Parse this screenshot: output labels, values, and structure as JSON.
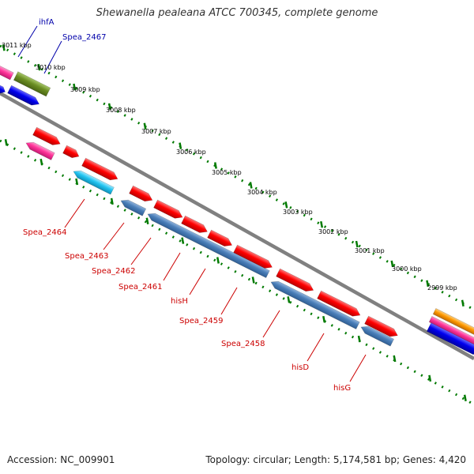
{
  "title": "Shewanella pealeana ATCC 700345, complete genome",
  "footer": {
    "accession": "Accession: NC_009901",
    "summary": "Topology: circular; Length: 5,174,581 bp; Genes: 4,420"
  },
  "colors": {
    "backbone": "#808080",
    "tick": "#007a00",
    "red_cds": "#ff0000",
    "blue_cds": "#4a7eb8",
    "cyan_cds": "#21c4f0",
    "pink_cds": "#ff3399",
    "olive_cds": "#6b8e23",
    "navy_cds": "#0000ee",
    "orange_cds": "#ff9900",
    "label_red": "#cc0000",
    "label_blue": "#0000aa"
  },
  "tick_labels": [
    "3011 kbp",
    "3010 kbp",
    "3009 kbp",
    "3008 kbp",
    "3007 kbp",
    "3006 kbp",
    "3005 kbp",
    "3004 kbp",
    "3003 kbp",
    "3002 kbp",
    "3001 kbp",
    "3000 kbp",
    "2999 kbp"
  ],
  "gene_labels_top": [
    "ihfA",
    "Spea_2467"
  ],
  "gene_labels_bottom": [
    "Spea_2464",
    "Spea_2463",
    "Spea_2462",
    "Spea_2461",
    "hisH",
    "Spea_2459",
    "Spea_2458",
    "hisD",
    "hisG"
  ]
}
